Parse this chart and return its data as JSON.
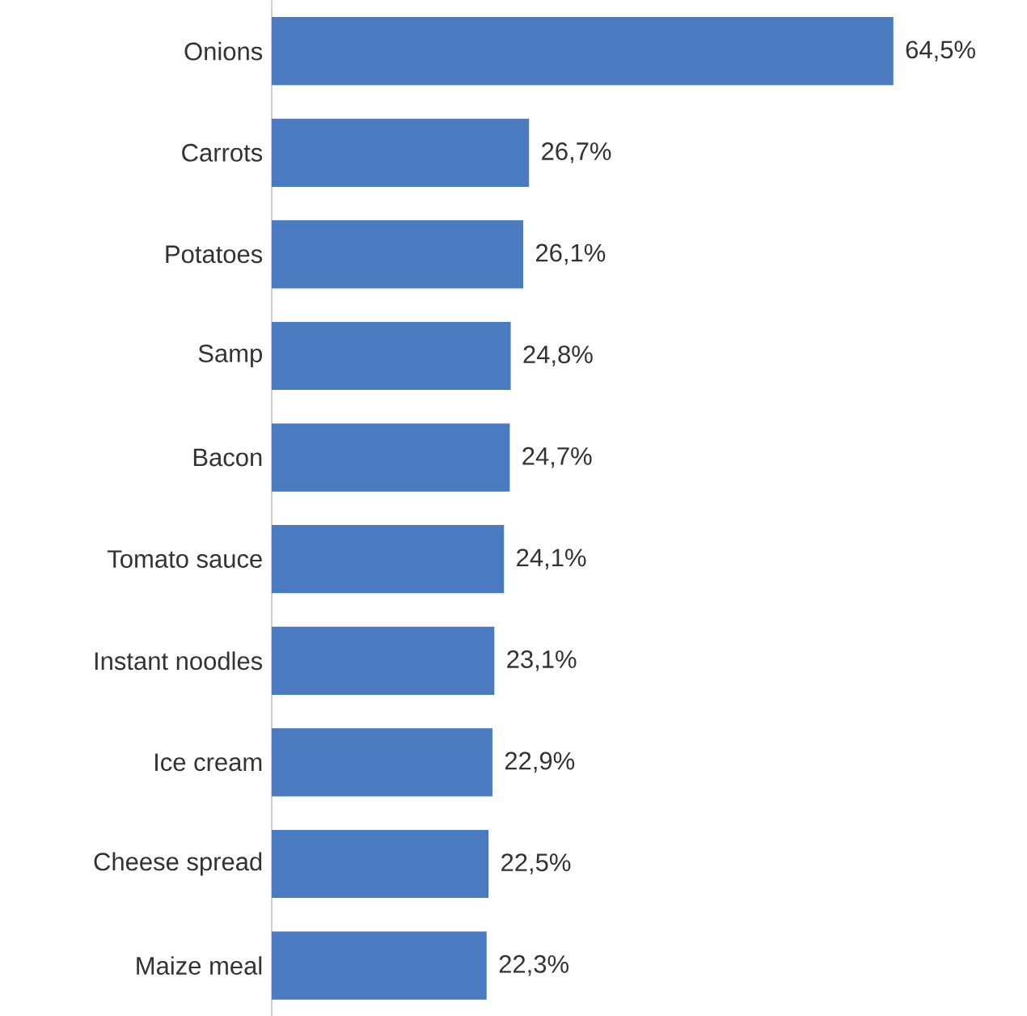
{
  "chart_data": {
    "type": "bar",
    "orientation": "horizontal",
    "color": "#4a7abf",
    "categories": [
      "Onions",
      "Carrots",
      "Potatoes",
      "Samp",
      "Bacon",
      "Tomato sauce",
      "Instant noodles",
      "Ice cream",
      "Cheese spread",
      "Maize meal"
    ],
    "values": [
      64.5,
      26.7,
      26.1,
      24.8,
      24.7,
      24.1,
      23.1,
      22.9,
      22.5,
      22.3
    ],
    "value_labels": [
      "64,5%",
      "26,7%",
      "26,1%",
      "24,8%",
      "24,7%",
      "24,1%",
      "23,1%",
      "22,9%",
      "22,5%",
      "22,3%"
    ]
  }
}
